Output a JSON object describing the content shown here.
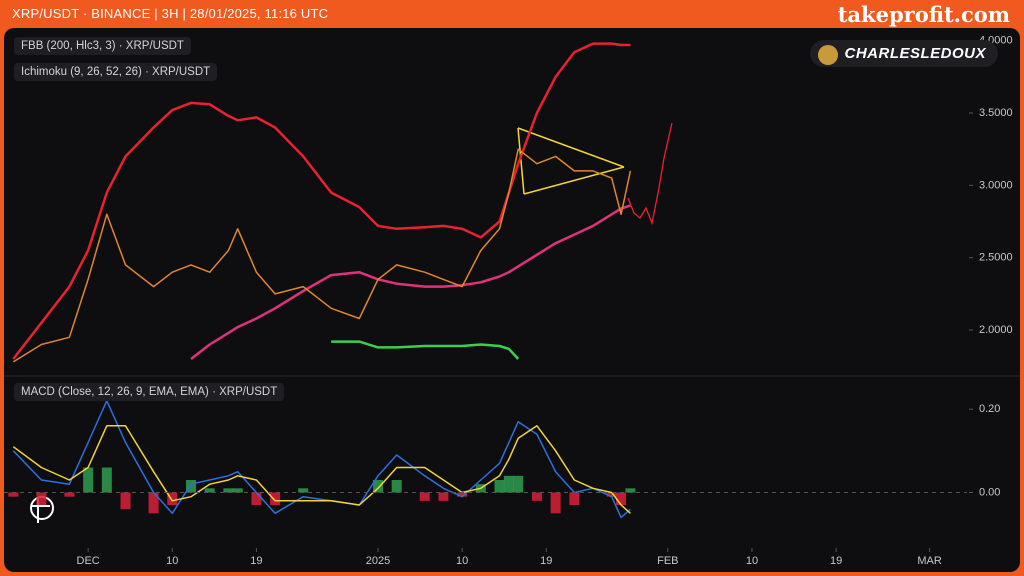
{
  "header": {
    "symbol": "XRP/USDT · BINANCE | 3H | 28/01/2025, 11:16 UTC",
    "site": "takeprofit.com"
  },
  "watermark": "CHARLESLEDOUX",
  "chart_data": [
    {
      "type": "line",
      "legend": [
        "FBB (200, Hlc3, 3) · XRP/USDT",
        "Ichimoku (9, 26, 52, 26) · XRP/USDT"
      ],
      "x": [
        "2024-11-23",
        "2024-11-26",
        "2024-11-29",
        "2024-12-01",
        "2024-12-03",
        "2024-12-05",
        "2024-12-08",
        "2024-12-10",
        "2024-12-12",
        "2024-12-14",
        "2024-12-16",
        "2024-12-17",
        "2024-12-19",
        "2024-12-21",
        "2024-12-24",
        "2024-12-27",
        "2024-12-30",
        "2025-01-01",
        "2025-01-03",
        "2025-01-06",
        "2025-01-08",
        "2025-01-10",
        "2025-01-12",
        "2025-01-14",
        "2025-01-15",
        "2025-01-16",
        "2025-01-18",
        "2025-01-20",
        "2025-01-22",
        "2025-01-24",
        "2025-01-26",
        "2025-01-27",
        "2025-01-28"
      ],
      "series": [
        {
          "color": "#e8222f",
          "width": 2.5,
          "values": [
            1.8,
            2.05,
            2.3,
            2.55,
            2.95,
            3.2,
            3.4,
            3.52,
            3.57,
            3.56,
            3.48,
            3.45,
            3.47,
            3.4,
            3.2,
            2.95,
            2.85,
            2.72,
            2.7,
            2.71,
            2.72,
            2.7,
            2.64,
            2.75,
            2.95,
            3.15,
            3.5,
            3.75,
            3.92,
            3.98,
            3.98,
            3.97,
            3.97
          ]
        },
        {
          "color": "#e0327a",
          "width": 2.5,
          "values": [
            null,
            null,
            null,
            null,
            null,
            null,
            null,
            null,
            1.8,
            1.9,
            1.98,
            2.02,
            2.08,
            2.15,
            2.27,
            2.38,
            2.4,
            2.35,
            2.32,
            2.3,
            2.3,
            2.31,
            2.33,
            2.37,
            2.4,
            2.44,
            2.52,
            2.6,
            2.66,
            2.72,
            2.8,
            2.84,
            2.86
          ]
        },
        {
          "color": "#3ccf4e",
          "width": 2.5,
          "values": [
            null,
            null,
            null,
            null,
            null,
            null,
            null,
            null,
            null,
            null,
            null,
            null,
            null,
            null,
            null,
            1.92,
            1.92,
            1.88,
            1.88,
            1.89,
            1.89,
            1.89,
            1.9,
            1.89,
            1.87,
            1.8,
            null,
            null,
            null,
            null,
            null,
            null,
            null
          ]
        },
        {
          "color": "#e0862f",
          "width": 1.5,
          "values": [
            1.78,
            1.9,
            1.95,
            2.35,
            2.8,
            2.45,
            2.3,
            2.4,
            2.45,
            2.4,
            2.55,
            2.7,
            2.4,
            2.25,
            2.3,
            2.15,
            2.08,
            2.35,
            2.45,
            2.4,
            2.35,
            2.3,
            2.55,
            2.7,
            2.95,
            3.25,
            3.15,
            3.2,
            3.1,
            3.1,
            3.05,
            2.8,
            3.1
          ]
        }
      ],
      "xlim": [
        "2024-11-22",
        "2025-03-05"
      ],
      "ylim": [
        1.71,
        4.06
      ],
      "yticks": [
        {
          "value": 2,
          "label": "2.0000"
        },
        {
          "value": 2.5,
          "label": "2.5000"
        },
        {
          "value": 3,
          "label": "3.0000"
        },
        {
          "value": 3.5,
          "label": "3.5000"
        },
        {
          "value": 4,
          "label": "4.0000"
        }
      ],
      "grid": false
    },
    {
      "type": "line",
      "legend": [
        "MACD (Close, 12, 26, 9, EMA, EMA) · XRP/USDT"
      ],
      "x": [
        "2024-11-23",
        "2024-11-26",
        "2024-11-29",
        "2024-12-01",
        "2024-12-03",
        "2024-12-05",
        "2024-12-08",
        "2024-12-10",
        "2024-12-12",
        "2024-12-14",
        "2024-12-16",
        "2024-12-17",
        "2024-12-19",
        "2024-12-21",
        "2024-12-24",
        "2024-12-27",
        "2024-12-30",
        "2025-01-01",
        "2025-01-03",
        "2025-01-06",
        "2025-01-08",
        "2025-01-10",
        "2025-01-12",
        "2025-01-14",
        "2025-01-15",
        "2025-01-16",
        "2025-01-18",
        "2025-01-20",
        "2025-01-22",
        "2025-01-24",
        "2025-01-26",
        "2025-01-27",
        "2025-01-28"
      ],
      "series": [
        {
          "type": "bar",
          "color": "#2e9e4f",
          "negative_color": "#d9213a",
          "values": [
            -0.01,
            -0.03,
            -0.01,
            0.06,
            0.06,
            -0.04,
            -0.05,
            -0.03,
            0.03,
            0.01,
            0.01,
            0.01,
            -0.03,
            -0.03,
            0.01,
            0.0,
            0.0,
            0.03,
            0.03,
            -0.02,
            -0.02,
            -0.01,
            0.02,
            0.03,
            0.04,
            0.04,
            -0.02,
            -0.05,
            -0.03,
            0.0,
            -0.01,
            -0.03,
            0.01
          ]
        },
        {
          "color": "#2f6fe0",
          "width": 1.5,
          "values": [
            0.1,
            0.03,
            0.02,
            0.12,
            0.22,
            0.12,
            0.0,
            -0.05,
            0.02,
            0.03,
            0.04,
            0.05,
            0.0,
            -0.05,
            -0.01,
            -0.02,
            -0.03,
            0.04,
            0.09,
            0.04,
            0.01,
            -0.01,
            0.03,
            0.07,
            0.12,
            0.17,
            0.14,
            0.05,
            0.0,
            0.01,
            -0.01,
            -0.06,
            -0.04
          ]
        },
        {
          "color": "#f2d43a",
          "width": 1.5,
          "values": [
            0.11,
            0.06,
            0.03,
            0.06,
            0.16,
            0.16,
            0.05,
            -0.02,
            -0.01,
            0.02,
            0.03,
            0.04,
            0.03,
            -0.02,
            -0.02,
            -0.02,
            -0.03,
            0.01,
            0.06,
            0.06,
            0.03,
            0.0,
            0.01,
            0.04,
            0.08,
            0.13,
            0.16,
            0.1,
            0.03,
            0.01,
            0.0,
            -0.03,
            -0.05
          ]
        }
      ],
      "xlim": [
        "2024-11-22",
        "2025-03-05"
      ],
      "ylim": [
        -0.126,
        0.27
      ],
      "yticks": [
        {
          "value": 0,
          "label": "0.00"
        },
        {
          "value": 0.2,
          "label": "0.20"
        }
      ],
      "zero_line": true,
      "xticks": [
        {
          "value": "2024-12-01",
          "label": "DEC"
        },
        {
          "value": "2024-12-10",
          "label": "10"
        },
        {
          "value": "2024-12-19",
          "label": "19"
        },
        {
          "value": "2025-01-01",
          "label": "2025"
        },
        {
          "value": "2025-01-10",
          "label": "10"
        },
        {
          "value": "2025-01-19",
          "label": "19"
        },
        {
          "value": "2025-02-01",
          "label": "FEB"
        },
        {
          "value": "2025-02-10",
          "label": "10"
        },
        {
          "value": "2025-02-19",
          "label": "19"
        },
        {
          "value": "2025-03-01",
          "label": "MAR"
        }
      ]
    }
  ]
}
